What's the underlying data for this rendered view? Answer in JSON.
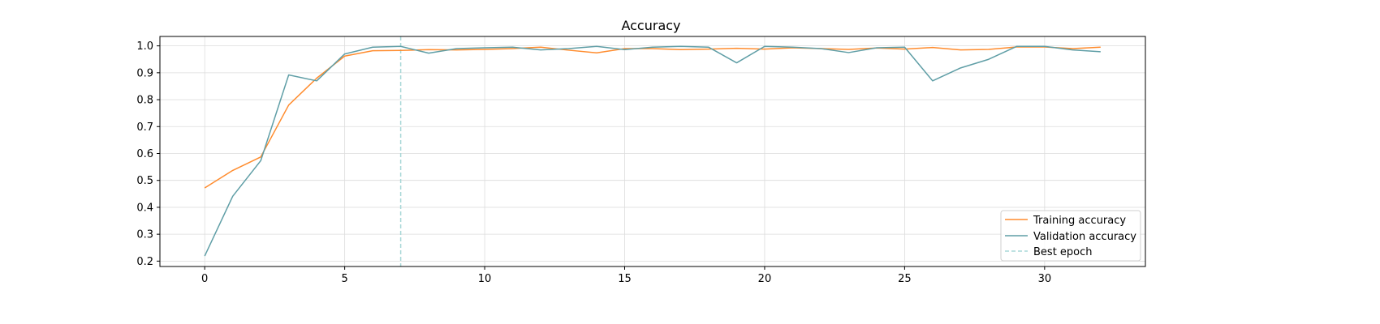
{
  "chart_data": {
    "type": "line",
    "title": "Accuracy",
    "xlabel": "",
    "ylabel": "",
    "xlim": [
      -1.6,
      33.6
    ],
    "ylim": [
      0.18,
      1.035
    ],
    "xticks": [
      0,
      5,
      10,
      15,
      20,
      25,
      30
    ],
    "yticks": [
      0.2,
      0.3,
      0.4,
      0.5,
      0.6,
      0.7,
      0.8,
      0.9,
      1.0
    ],
    "ytick_labels": [
      "0.2",
      "0.3",
      "0.4",
      "0.5",
      "0.6",
      "0.7",
      "0.8",
      "0.9",
      "1.0"
    ],
    "grid": true,
    "legend_position": "bottom-right",
    "x": [
      0,
      1,
      2,
      3,
      4,
      5,
      6,
      7,
      8,
      9,
      10,
      11,
      12,
      13,
      14,
      15,
      16,
      17,
      18,
      19,
      20,
      21,
      22,
      23,
      24,
      25,
      26,
      27,
      28,
      29,
      30,
      31,
      32
    ],
    "series": [
      {
        "name": "Training accuracy",
        "color": "#ff8c2e",
        "values": [
          0.472,
          0.537,
          0.587,
          0.78,
          0.88,
          0.962,
          0.982,
          0.983,
          0.986,
          0.985,
          0.987,
          0.99,
          0.995,
          0.984,
          0.974,
          0.99,
          0.99,
          0.986,
          0.988,
          0.991,
          0.988,
          0.993,
          0.99,
          0.987,
          0.992,
          0.988,
          0.994,
          0.985,
          0.987,
          0.996,
          0.996,
          0.99,
          0.995
        ]
      },
      {
        "name": "Validation accuracy",
        "color": "#5f9ea6",
        "values": [
          0.219,
          0.441,
          0.573,
          0.892,
          0.87,
          0.97,
          0.995,
          0.998,
          0.973,
          0.99,
          0.993,
          0.995,
          0.985,
          0.99,
          0.998,
          0.986,
          0.995,
          0.998,
          0.995,
          0.937,
          0.998,
          0.995,
          0.99,
          0.975,
          0.993,
          0.995,
          0.87,
          0.918,
          0.95,
          0.998,
          0.998,
          0.985,
          0.978
        ]
      }
    ],
    "best_epoch": {
      "name": "Best epoch",
      "x": 7,
      "color": "#a8d8d8"
    }
  }
}
